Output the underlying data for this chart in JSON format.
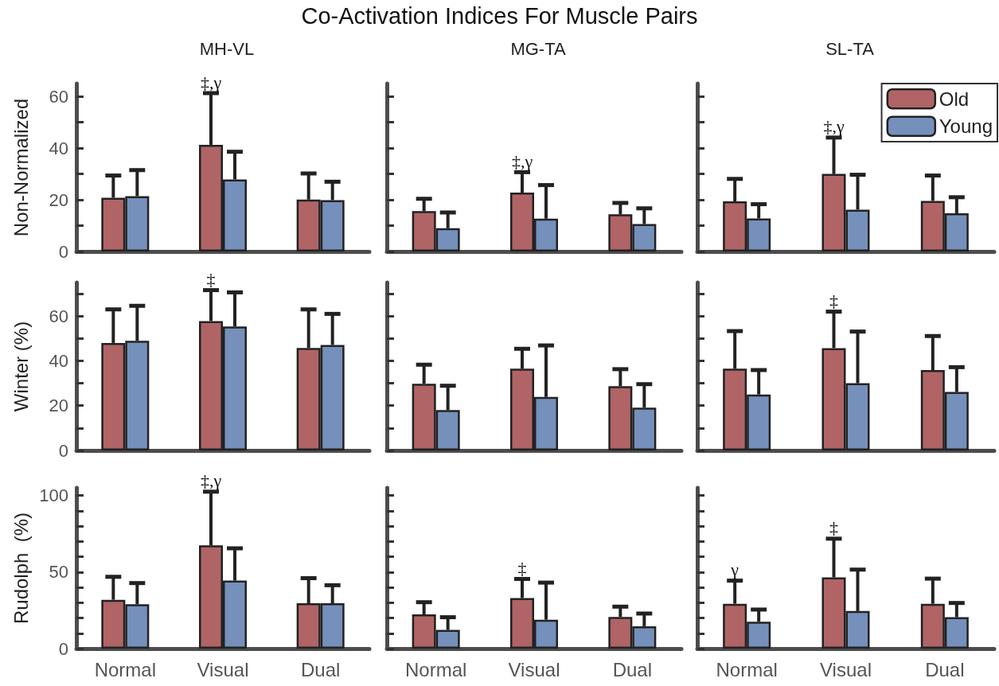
{
  "chart_data": [
    {
      "type": "bar",
      "title": "Co-Activation Indices For Muscle Pairs",
      "subtitle": "MH-VL",
      "ylabel": "Non-Normalized",
      "categories": [
        "Normal",
        "Visual",
        "Dual"
      ],
      "ylim": [
        0,
        65
      ],
      "yticks": [
        0,
        {
          "value": 10,
          "label": null
        },
        20,
        {
          "value": 30,
          "label": null
        },
        40,
        {
          "value": 50,
          "label": null
        },
        60
      ],
      "tick_labels": "y",
      "grid": false,
      "legend": false,
      "series": [
        {
          "color": "#b06466",
          "values": [
            20.8,
            41.3,
            20.1
          ],
          "errors": [
            [
              20.8,
              29.4
            ],
            [
              41.3,
              61.3
            ],
            [
              20.1,
              30.2
            ]
          ]
        },
        {
          "color": "#7590bb",
          "values": [
            21.4,
            27.9,
            19.9
          ],
          "errors": [
            [
              21.4,
              31.5
            ],
            [
              27.9,
              38.6
            ],
            [
              19.9,
              27
            ]
          ]
        }
      ],
      "annotations": [
        "‡,γ"
      ]
    },
    {
      "type": "bar",
      "subtitle": "MG-TA",
      "categories": [
        "Normal",
        "Visual",
        "Dual"
      ],
      "ylim": [
        0,
        65
      ],
      "yticks": [
        {
          "value": 0,
          "label": null
        },
        {
          "value": 10,
          "label": null
        },
        {
          "value": 20,
          "label": null
        },
        {
          "value": 30,
          "label": null
        },
        {
          "value": 40,
          "label": null
        },
        {
          "value": 50,
          "label": null
        },
        {
          "value": 60,
          "label": null
        }
      ],
      "tick_labels": false,
      "grid": false,
      "legend": false,
      "series": [
        {
          "color": "#b06466",
          "values": [
            15.6,
            22.8,
            14.4
          ],
          "errors": [
            [
              15.6,
              20.4
            ],
            [
              22.8,
              30.7
            ],
            [
              14.4,
              18.8
            ]
          ]
        },
        {
          "color": "#7590bb",
          "values": [
            9,
            12.7,
            10.6
          ],
          "errors": [
            [
              9,
              15.1
            ],
            [
              12.7,
              25.7
            ],
            [
              10.6,
              16.7
            ]
          ]
        }
      ],
      "annotations": [
        {
          "text": "‡,γ",
          "x": "Visual",
          "y": 30.7
        }
      ]
    },
    {
      "type": "bar",
      "subtitle": "SL-TA",
      "categories": [
        "Normal",
        "Visual",
        "Dual"
      ],
      "ylim": [
        0,
        65
      ],
      "yticks": [
        {
          "value": 0,
          "label": null
        },
        {
          "value": 10,
          "label": null
        },
        {
          "value": 20,
          "label": null
        },
        {
          "value": 30,
          "label": null
        },
        {
          "value": 40,
          "label": null
        },
        {
          "value": 50,
          "label": null
        },
        {
          "value": 60,
          "label": null
        }
      ],
      "tick_labels": false,
      "grid": false,
      "legend": "top right",
      "series": [
        {
          "name": "Old",
          "color": "#b06466",
          "values": [
            19.4,
            30,
            19.6
          ],
          "errors": [
            [
              19.4,
              28.1
            ],
            [
              30,
              44.1
            ],
            [
              19.6,
              29.4
            ]
          ]
        },
        {
          "name": "Young",
          "color": "#7590bb",
          "values": [
            12.8,
            16.2,
            14.8
          ],
          "errors": [
            [
              12.8,
              18.3
            ],
            [
              16.2,
              29.7
            ],
            [
              14.8,
              21
            ]
          ]
        }
      ],
      "annotations": [
        {
          "text": "‡,γ",
          "x": "Visual",
          "y": 44.1
        }
      ]
    },
    {
      "type": "bar",
      "ylabel": "Winter (%)",
      "categories": [
        "Normal",
        "Visual",
        "Dual"
      ],
      "ylim": [
        0,
        75
      ],
      "yticks": [
        0,
        {
          "value": 10,
          "label": null
        },
        20,
        {
          "value": 30,
          "label": null
        },
        40,
        {
          "value": 50,
          "label": null
        },
        60,
        {
          "value": 70,
          "label": null
        }
      ],
      "tick_labels": "y",
      "grid": false,
      "legend": false,
      "series": [
        {
          "color": "#b06466",
          "values": [
            48,
            57.8,
            45.8
          ],
          "errors": [
            [
              48,
              63
            ],
            [
              57.8,
              71.6
            ],
            [
              45.8,
              63
            ]
          ]
        },
        {
          "color": "#7590bb",
          "values": [
            49,
            55.4,
            47.1
          ],
          "errors": [
            [
              49,
              64.6
            ],
            [
              55.4,
              70.6
            ],
            [
              47.1,
              61
            ]
          ]
        }
      ],
      "annotations": [
        "‡"
      ]
    },
    {
      "type": "bar",
      "categories": [
        "Normal",
        "Visual",
        "Dual"
      ],
      "ylim": [
        0,
        75
      ],
      "yticks": [
        {
          "value": 0,
          "label": null
        },
        {
          "value": 10,
          "label": null
        },
        {
          "value": 20,
          "label": null
        },
        {
          "value": 30,
          "label": null
        },
        {
          "value": 40,
          "label": null
        },
        {
          "value": 50,
          "label": null
        },
        {
          "value": 60,
          "label": null
        },
        {
          "value": 70,
          "label": null
        }
      ],
      "tick_labels": false,
      "grid": false,
      "legend": false,
      "series": [
        {
          "color": "#b06466",
          "values": [
            29.8,
            36.5,
            28.7
          ],
          "errors": [
            [
              29.8,
              38.3
            ],
            [
              36.5,
              45.4
            ],
            [
              28.7,
              36.3
            ]
          ]
        },
        {
          "color": "#7590bb",
          "values": [
            18,
            23.9,
            19.1
          ],
          "errors": [
            [
              18,
              28.9
            ],
            [
              23.9,
              46.9
            ],
            [
              19.1,
              29.6
            ]
          ]
        }
      ]
    },
    {
      "type": "bar",
      "categories": [
        "Normal",
        "Visual",
        "Dual"
      ],
      "ylim": [
        0,
        75
      ],
      "yticks": [
        {
          "value": 0,
          "label": null
        },
        {
          "value": 10,
          "label": null
        },
        {
          "value": 20,
          "label": null
        },
        {
          "value": 30,
          "label": null
        },
        {
          "value": 40,
          "label": null
        },
        {
          "value": 50,
          "label": null
        },
        {
          "value": 60,
          "label": null
        },
        {
          "value": 70,
          "label": null
        }
      ],
      "tick_labels": false,
      "grid": false,
      "legend": false,
      "series": [
        {
          "color": "#b06466",
          "values": [
            36.5,
            45.7,
            35.9
          ],
          "errors": [
            [
              36.5,
              53.3
            ],
            [
              45.7,
              62
            ],
            [
              35.9,
              51.1
            ]
          ]
        },
        {
          "color": "#7590bb",
          "values": [
            25,
            30,
            26.1
          ],
          "errors": [
            [
              25,
              35.9
            ],
            [
              30,
              53.1
            ],
            [
              26.1,
              37.2
            ]
          ]
        }
      ],
      "annotations": [
        {
          "text": "‡",
          "x": "Visual",
          "y": 62
        }
      ]
    },
    {
      "type": "bar",
      "ylabel": "Rudolph  (%)",
      "categories": [
        "Normal",
        "Visual",
        "Dual"
      ],
      "ylim": [
        0,
        105
      ],
      "yticks": [
        0,
        {
          "value": 10,
          "label": null
        },
        {
          "value": 20,
          "label": null
        },
        {
          "value": 30,
          "label": null
        },
        {
          "value": 40,
          "label": null
        },
        50,
        {
          "value": 60,
          "label": null
        },
        {
          "value": 70,
          "label": null
        },
        {
          "value": 80,
          "label": null
        },
        {
          "value": 90,
          "label": null
        },
        100
      ],
      "grid": false,
      "legend": false,
      "series": [
        {
          "color": "#b06466",
          "values": [
            31.9,
            67.4,
            29.6
          ],
          "errors": [
            [
              31.9,
              46.9
            ],
            [
              67.4,
              102.5
            ],
            [
              29.6,
              46
            ]
          ]
        },
        {
          "color": "#7590bb",
          "values": [
            29,
            44.4,
            29.6
          ],
          "errors": [
            [
              29,
              42.8
            ],
            [
              44.4,
              65.5
            ],
            [
              29.6,
              41.4
            ]
          ]
        }
      ],
      "annotations": [
        "‡,γ"
      ]
    },
    {
      "type": "bar",
      "categories": [
        "Normal",
        "Visual",
        "Dual"
      ],
      "ylim": [
        0,
        105
      ],
      "yticks": [
        {
          "value": 0,
          "label": null
        },
        {
          "value": 10,
          "label": null
        },
        {
          "value": 20,
          "label": null
        },
        {
          "value": 30,
          "label": null
        },
        {
          "value": 40,
          "label": null
        },
        {
          "value": 50,
          "label": null
        },
        {
          "value": 60,
          "label": null
        },
        {
          "value": 70,
          "label": null
        },
        {
          "value": 80,
          "label": null
        },
        {
          "value": 90,
          "label": null
        },
        {
          "value": 100,
          "label": null
        }
      ],
      "tick_labels": "x",
      "grid": false,
      "legend": false,
      "series": [
        {
          "color": "#b06466",
          "values": [
            22.3,
            33,
            20.7
          ],
          "errors": [
            [
              22.3,
              30.3
            ],
            [
              33,
              45.5
            ],
            [
              20.7,
              27.4
            ]
          ]
        },
        {
          "color": "#7590bb",
          "values": [
            12.2,
            18.9,
            14.6
          ],
          "errors": [
            [
              12.2,
              20.5
            ],
            [
              18.9,
              43.1
            ],
            [
              14.6,
              22.9
            ]
          ]
        }
      ],
      "annotations": [
        {
          "text": "‡",
          "x": "Visual",
          "y": 45.5
        }
      ]
    },
    {
      "type": "bar",
      "categories": [
        "Normal",
        "Visual",
        "Dual"
      ],
      "ylim": [
        0,
        105
      ],
      "yticks": [
        {
          "value": 0,
          "label": null
        },
        {
          "value": 10,
          "label": null
        },
        {
          "value": 20,
          "label": null
        },
        {
          "value": 30,
          "label": null
        },
        {
          "value": 40,
          "label": null
        },
        {
          "value": 50,
          "label": null
        },
        {
          "value": 60,
          "label": null
        },
        {
          "value": 70,
          "label": null
        },
        {
          "value": 80,
          "label": null
        },
        {
          "value": 90,
          "label": null
        },
        {
          "value": 100,
          "label": null
        }
      ],
      "tick_labels": "x",
      "grid": false,
      "legend": false,
      "series": [
        {
          "color": "#b06466",
          "values": [
            29.3,
            46.5,
            29.3
          ],
          "errors": [
            [
              29.3,
              44.4
            ],
            [
              46.5,
              71.8
            ],
            [
              29.3,
              45.7
            ]
          ]
        },
        {
          "color": "#7590bb",
          "values": [
            17.6,
            24.5,
            20.5
          ],
          "errors": [
            [
              17.6,
              25.5
            ],
            [
              24.5,
              51.6
            ],
            [
              20.5,
              29.8
            ]
          ]
        }
      ],
      "annotations": [
        {
          "text": "γ",
          "x": "Normal",
          "y": 44.4
        },
        {
          "text": "‡",
          "x": "Visual",
          "y": 71.8
        }
      ]
    }
  ]
}
